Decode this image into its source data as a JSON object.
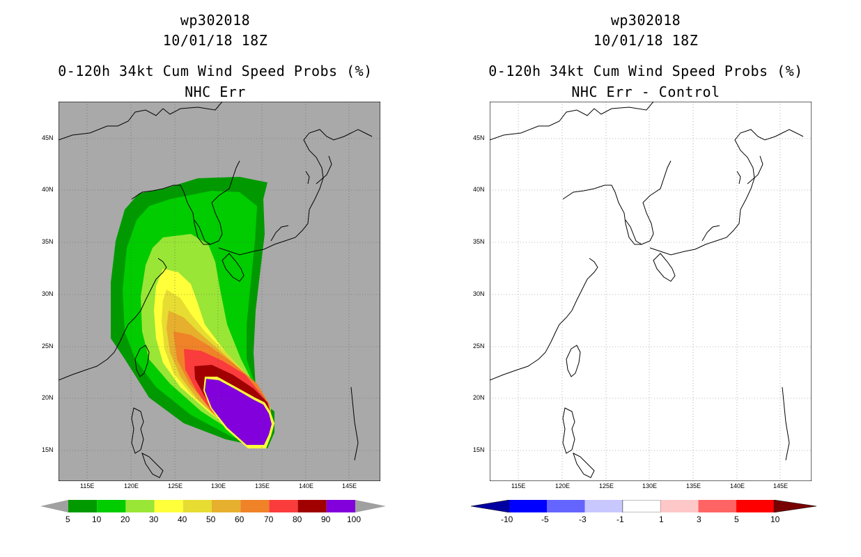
{
  "panels": [
    {
      "id": "left",
      "storm_id": "wp302018",
      "datetime": "10/01/18 18Z",
      "product": "0-120h 34kt Cum Wind Speed Probs (%)",
      "subtitle": "NHC Err",
      "lon_ticks": [
        "115E",
        "120E",
        "125E",
        "130E",
        "135E",
        "140E",
        "145E"
      ],
      "lat_ticks": [
        "15N",
        "20N",
        "25N",
        "30N",
        "35N",
        "40N",
        "45N"
      ],
      "colorbar": {
        "labels": [
          "5",
          "10",
          "20",
          "30",
          "40",
          "50",
          "60",
          "70",
          "80",
          "90",
          "100"
        ],
        "colors": [
          "#009a00",
          "#00cc00",
          "#99e636",
          "#ffff3a",
          "#e6dc32",
          "#e6af2d",
          "#f08228",
          "#fa3c3c",
          "#a00000",
          "#8200dc"
        ],
        "arrow_color": "#a0a0a0"
      }
    },
    {
      "id": "right",
      "storm_id": "wp302018",
      "datetime": "10/01/18 18Z",
      "product": "0-120h 34kt Cum Wind Speed Probs (%)",
      "subtitle": "NHC Err - Control",
      "lon_ticks": [
        "115E",
        "120E",
        "125E",
        "130E",
        "135E",
        "140E",
        "145E"
      ],
      "lat_ticks": [
        "15N",
        "20N",
        "25N",
        "30N",
        "35N",
        "40N",
        "45N"
      ],
      "colorbar": {
        "labels": [
          "-10",
          "-5",
          "-3",
          "-1",
          "1",
          "3",
          "5",
          "10"
        ],
        "colors": [
          "#0000ff",
          "#6464ff",
          "#c8c8ff",
          "#ffffff",
          "#ffc8c8",
          "#ff6464",
          "#ff0000"
        ],
        "low_arrow_color": "#0000a0",
        "high_arrow_color": "#780000"
      }
    }
  ]
}
